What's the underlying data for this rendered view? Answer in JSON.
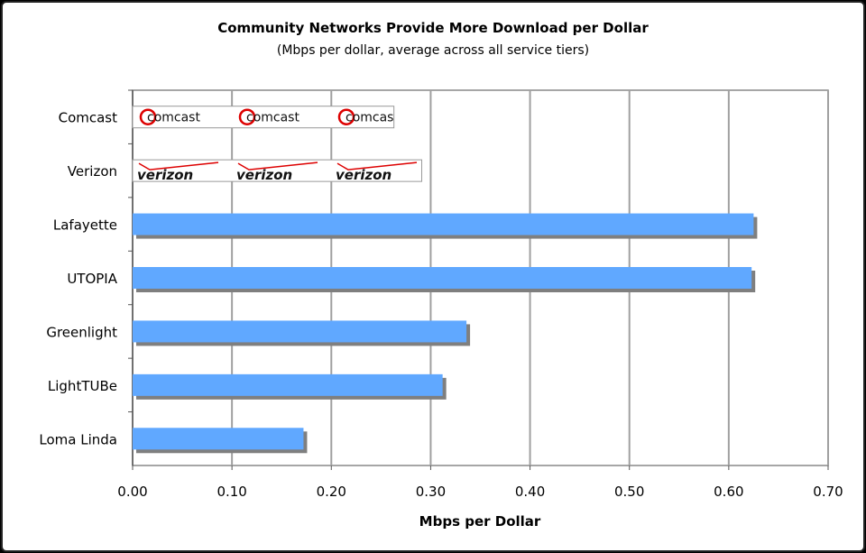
{
  "chart_data": {
    "type": "bar",
    "orientation": "horizontal",
    "title": "Community Networks Provide More Download per Dollar",
    "subtitle": "(Mbps per dollar, average across all service tiers)",
    "xlabel": "Mbps per Dollar",
    "ylabel": "",
    "xlim": [
      0,
      0.7
    ],
    "xticks": [
      "0.00",
      "0.10",
      "0.20",
      "0.30",
      "0.40",
      "0.50",
      "0.60",
      "0.70"
    ],
    "grid": "vertical",
    "categories": [
      "Comcast",
      "Verizon",
      "Lafayette",
      "UTOPIA",
      "Greenlight",
      "LightTUBe",
      "Loma Linda"
    ],
    "values": [
      0.263,
      0.291,
      0.625,
      0.623,
      0.336,
      0.312,
      0.172
    ],
    "bar_fill": [
      "logo-comcast",
      "logo-verizon",
      "#60A8FF",
      "#60A8FF",
      "#60A8FF",
      "#60A8FF",
      "#60A8FF"
    ],
    "logo_text": {
      "comcast": "comcast",
      "verizon": "verizon"
    },
    "colors": {
      "bar": "#60A8FF",
      "shadow": "#7F7F7F",
      "grid": "#A0A0A0"
    }
  }
}
